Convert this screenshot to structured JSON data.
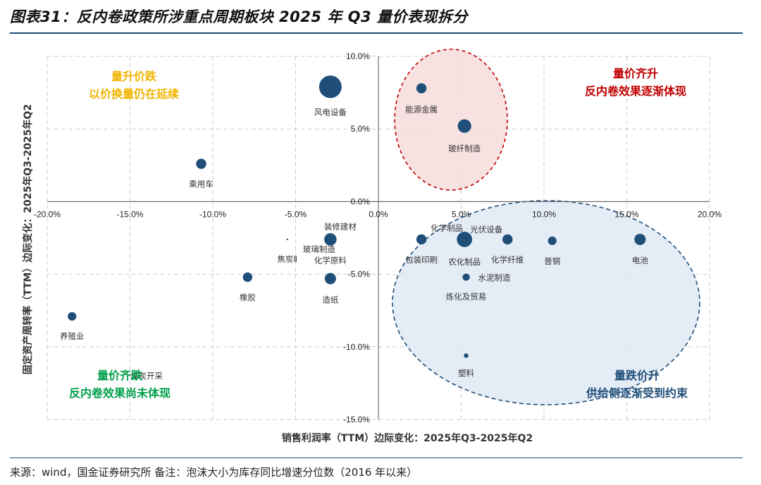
{
  "title": "图表31：反内卷政策所涉重点周期板块 2025 年 Q3 量价表现拆分",
  "source": "来源：wind，国金证券研究所 备注：泡沫大小为库存同比增速分位数（2016 年以来）",
  "colors": {
    "bubble": "#1f4e79",
    "rule": "#1f4e79",
    "grid": "#cccccc"
  },
  "chart_data": {
    "type": "scatter",
    "title": "",
    "xlabel": "销售利润率（TTM）边际变化：2025年Q3-2025年Q2",
    "ylabel": "固定资产周转率（TTM）边际变化：2025年Q3-2025年Q2",
    "xlim": [
      -20,
      20
    ],
    "ylim": [
      -15,
      10
    ],
    "x_ticks": [
      "-20.0%",
      "-15.0%",
      "-10.0%",
      "-5.0%",
      "0.0%",
      "5.0%",
      "10.0%",
      "15.0%",
      "20.0%"
    ],
    "y_ticks": [
      "10.0%",
      "5.0%",
      "0.0%",
      "-5.0%",
      "-10.0%",
      "-15.0%"
    ],
    "grid": true,
    "points": [
      {
        "name": "风电设备",
        "x": -2.9,
        "y": 7.9,
        "size": 1.0
      },
      {
        "name": "能源金属",
        "x": 2.6,
        "y": 7.8,
        "size": 0.45
      },
      {
        "name": "玻纤制造",
        "x": 5.2,
        "y": 5.2,
        "size": 0.6
      },
      {
        "name": "乘用车",
        "x": -10.7,
        "y": 2.6,
        "size": 0.45
      },
      {
        "name": "装修建材",
        "x": -2.9,
        "y": -2.6,
        "size": 0.55
      },
      {
        "name": "焦炭Ⅱ",
        "x": -5.5,
        "y": -2.6,
        "size": 0.06
      },
      {
        "name": "玻璃制造",
        "x": -2.9,
        "y": -2.6,
        "size": 0.0
      },
      {
        "name": "化学原料",
        "x": -2.9,
        "y": -2.6,
        "size": 0.0
      },
      {
        "name": "造纸",
        "x": -2.9,
        "y": -5.3,
        "size": 0.5
      },
      {
        "name": "橡胶",
        "x": -7.9,
        "y": -5.2,
        "size": 0.42
      },
      {
        "name": "养殖业",
        "x": -18.5,
        "y": -7.9,
        "size": 0.38
      },
      {
        "name": "煤炭开采",
        "x": -14.0,
        "y": -12.0,
        "size": 0.0
      },
      {
        "name": "包装印刷",
        "x": 2.6,
        "y": -2.6,
        "size": 0.45
      },
      {
        "name": "化学制品",
        "x": 5.2,
        "y": -2.6,
        "size": 0.0
      },
      {
        "name": "农化制品",
        "x": 5.2,
        "y": -2.6,
        "size": 0.68
      },
      {
        "name": "光伏设备",
        "x": 7.8,
        "y": -2.6,
        "size": 0.45
      },
      {
        "name": "化学纤维",
        "x": 7.8,
        "y": -2.6,
        "size": 0.0
      },
      {
        "name": "普钢",
        "x": 10.5,
        "y": -2.7,
        "size": 0.38
      },
      {
        "name": "电池",
        "x": 15.8,
        "y": -2.6,
        "size": 0.5
      },
      {
        "name": "水泥制造",
        "x": 5.3,
        "y": -5.2,
        "size": 0.32
      },
      {
        "name": "炼化及贸易",
        "x": 5.3,
        "y": -5.2,
        "size": 0.0
      },
      {
        "name": "塑料",
        "x": 5.3,
        "y": -10.6,
        "size": 0.2
      }
    ],
    "annotations": [
      {
        "lines": [
          "量升价跌",
          "以价换量仍在延续"
        ],
        "color": "#f0b400"
      },
      {
        "lines": [
          "量价齐升",
          "反内卷效果逐渐体现"
        ],
        "color": "#c00000"
      },
      {
        "lines": [
          "量价齐跌",
          "反内卷效果尚未体现"
        ],
        "color": "#00a04a"
      },
      {
        "lines": [
          "量跌价升",
          "供给侧逐渐受到约束"
        ],
        "color": "#1f4e79"
      }
    ]
  }
}
